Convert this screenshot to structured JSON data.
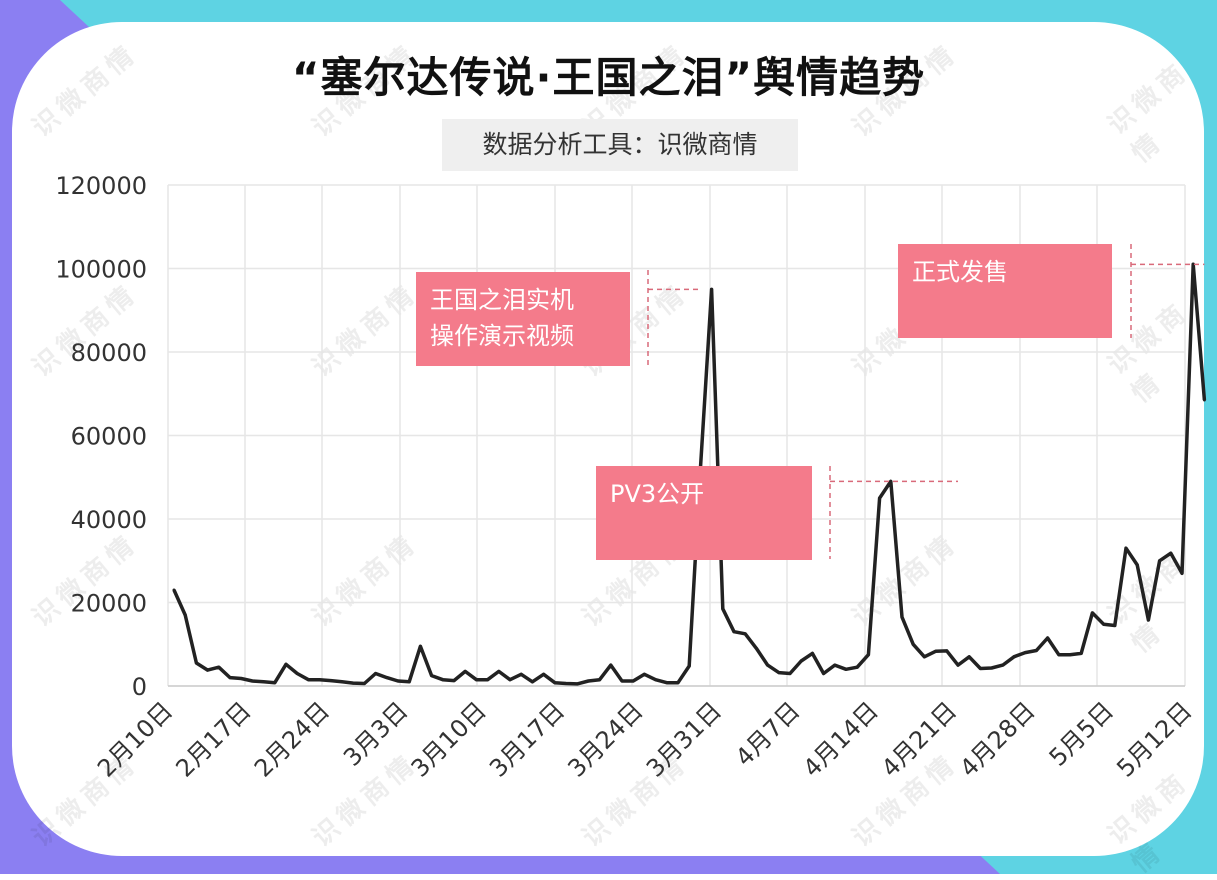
{
  "title": "“塞尔达传说·王国之泪”舆情趋势",
  "subtitle": "数据分析工具：识微商情",
  "watermark": "识微商情",
  "colors": {
    "line": "#222222",
    "annotation": "#f47b8b",
    "bg_left": "#8b7ff2",
    "bg_right": "#5ed3e3",
    "grid": "#e6e6e6"
  },
  "annotations": [
    {
      "text_lines": [
        "王国之泪实机",
        "操作演示视频"
      ],
      "x": 47,
      "y": 95000
    },
    {
      "text_lines": [
        "PV3公开"
      ],
      "x": 70,
      "y": 49000
    },
    {
      "text_lines": [
        "正式发售"
      ],
      "x": 92,
      "y": 101000
    }
  ],
  "chart_data": {
    "type": "line",
    "title": "“塞尔达传说·王国之泪”舆情趋势",
    "xlabel": "",
    "ylabel": "",
    "ylim": [
      0,
      120000
    ],
    "yticks": [
      0,
      20000,
      40000,
      60000,
      80000,
      100000,
      120000
    ],
    "xticks": [
      {
        "label": "2月10日",
        "x": 0
      },
      {
        "label": "2月17日",
        "x": 7
      },
      {
        "label": "2月24日",
        "x": 14
      },
      {
        "label": "3月3日",
        "x": 21
      },
      {
        "label": "3月10日",
        "x": 28
      },
      {
        "label": "3月17日",
        "x": 35
      },
      {
        "label": "3月24日",
        "x": 42
      },
      {
        "label": "3月31日",
        "x": 49
      },
      {
        "label": "4月7日",
        "x": 56
      },
      {
        "label": "4月14日",
        "x": 63
      },
      {
        "label": "4月21日",
        "x": 70
      },
      {
        "label": "4月28日",
        "x": 77
      },
      {
        "label": "5月5日",
        "x": 84
      },
      {
        "label": "5月12日",
        "x": 91
      }
    ],
    "grid": true,
    "legend": "none",
    "series": [
      {
        "values": [
          23000,
          17000,
          5500,
          3800,
          4500,
          2000,
          1800,
          1200,
          1000,
          800,
          5200,
          3000,
          1500,
          1500,
          1300,
          1000,
          700,
          600,
          3000,
          2000,
          1200,
          1000,
          9500,
          2500,
          1500,
          1300,
          3500,
          1500,
          1500,
          3500,
          1500,
          2800,
          1000,
          2800,
          800,
          600,
          500,
          1200,
          1500,
          5000,
          1200,
          1200,
          2800,
          1500,
          800,
          800,
          4800,
          52000,
          95000,
          18500,
          13000,
          12500,
          9000,
          5000,
          3200,
          3000,
          6000,
          7800,
          3000,
          5000,
          4000,
          4500,
          7500,
          45000,
          49000,
          16500,
          10000,
          7000,
          8300,
          8400,
          5000,
          7000,
          4200,
          4300,
          5000,
          7000,
          8000,
          8500,
          11500,
          7500,
          7500,
          7800,
          17500,
          14800,
          14500,
          33000,
          29000,
          15800,
          30000,
          31800,
          27000,
          101000,
          68500
        ]
      }
    ]
  }
}
